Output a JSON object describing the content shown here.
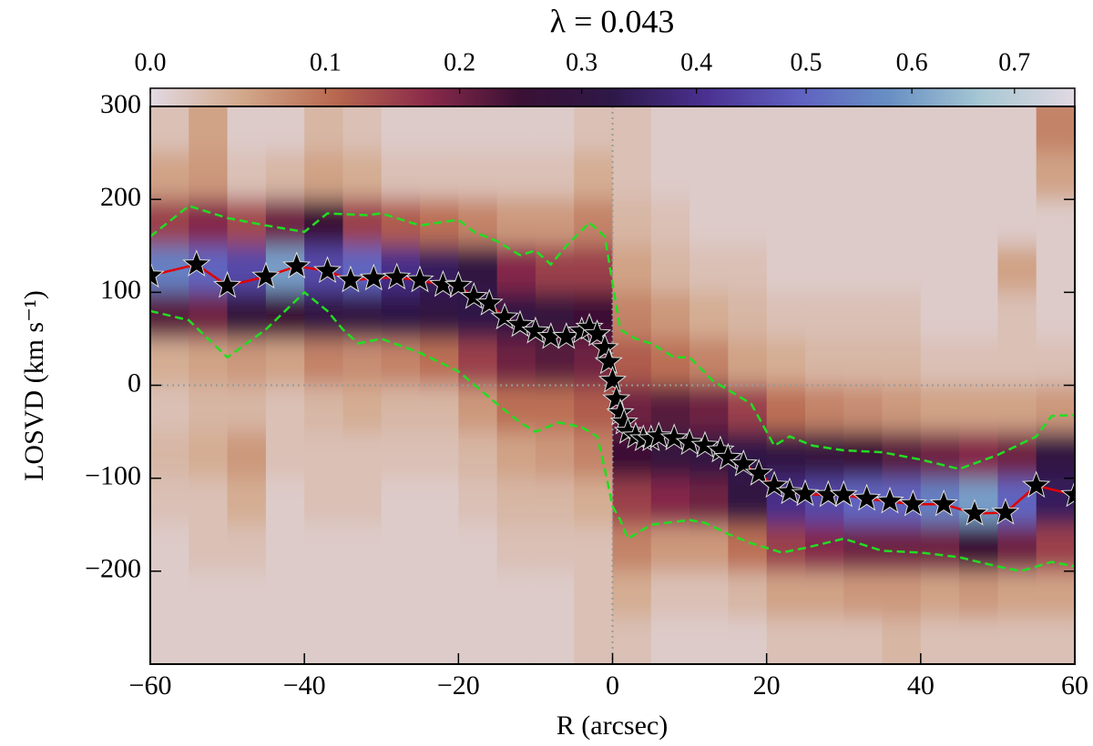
{
  "chart_data": {
    "type": "heatmap",
    "title": "λ = 0.043",
    "xlabel": "R (arcsec)",
    "ylabel": "LOSVD (km s⁻¹)",
    "xlim": [
      -60,
      60
    ],
    "ylim": [
      -300,
      300
    ],
    "xticks": [
      {
        "value": -60,
        "label": "−60"
      },
      {
        "value": -40,
        "label": "−40"
      },
      {
        "value": -20,
        "label": "−20"
      },
      0,
      20,
      40,
      60
    ],
    "yticks": [
      300,
      200,
      100,
      0,
      {
        "value": -100,
        "label": "−100"
      },
      {
        "value": -200,
        "label": "−200"
      }
    ],
    "vlines": [
      0
    ],
    "hlines": [
      0
    ],
    "x_edges": [
      -60,
      -55,
      -50,
      -45,
      -40,
      -35,
      -30,
      -25,
      -20,
      -15,
      -10,
      -5,
      0,
      5,
      10,
      15,
      20,
      25,
      30,
      35,
      40,
      45,
      50,
      55,
      60
    ],
    "y_edges": [
      300,
      250,
      200,
      150,
      100,
      50,
      0,
      -50,
      -100,
      -150,
      -200,
      -250,
      -300
    ],
    "z": [
      [
        0.02,
        0.05,
        0.15,
        0.55,
        0.22,
        0.04,
        0.02,
        0.03,
        0.02,
        0.01,
        0.01,
        0.01
      ],
      [
        0.05,
        0.06,
        0.18,
        0.5,
        0.2,
        0.05,
        0.03,
        0.04,
        0.02,
        0.02,
        0.01,
        0.01
      ],
      [
        0.01,
        0.02,
        0.14,
        0.45,
        0.28,
        0.06,
        0.03,
        0.06,
        0.04,
        0.02,
        0.01,
        0.01
      ],
      [
        0.01,
        0.03,
        0.2,
        0.6,
        0.25,
        0.05,
        0.02,
        0.02,
        0.01,
        0.01,
        0.01,
        0.01
      ],
      [
        0.03,
        0.05,
        0.25,
        0.45,
        0.3,
        0.08,
        0.03,
        0.02,
        0.02,
        0.01,
        0.01,
        0.01
      ],
      [
        0.02,
        0.04,
        0.15,
        0.5,
        0.3,
        0.07,
        0.04,
        0.02,
        0.02,
        0.01,
        0.01,
        0.01
      ],
      [
        0.01,
        0.02,
        0.12,
        0.4,
        0.32,
        0.08,
        0.03,
        0.02,
        0.01,
        0.01,
        0.01,
        0.01
      ],
      [
        0.01,
        0.02,
        0.1,
        0.35,
        0.3,
        0.1,
        0.03,
        0.02,
        0.01,
        0.01,
        0.01,
        0.01
      ],
      [
        0.01,
        0.02,
        0.08,
        0.3,
        0.32,
        0.15,
        0.06,
        0.03,
        0.02,
        0.01,
        0.01,
        0.01
      ],
      [
        0.01,
        0.02,
        0.06,
        0.18,
        0.3,
        0.2,
        0.1,
        0.05,
        0.03,
        0.02,
        0.01,
        0.01
      ],
      [
        0.01,
        0.02,
        0.06,
        0.15,
        0.28,
        0.22,
        0.1,
        0.06,
        0.03,
        0.02,
        0.01,
        0.01
      ],
      [
        0.02,
        0.04,
        0.08,
        0.15,
        0.25,
        0.2,
        0.12,
        0.08,
        0.04,
        0.02,
        0.02,
        0.02
      ],
      [
        0.02,
        0.02,
        0.03,
        0.05,
        0.08,
        0.12,
        0.2,
        0.25,
        0.15,
        0.08,
        0.04,
        0.02
      ],
      [
        0.01,
        0.01,
        0.02,
        0.03,
        0.06,
        0.1,
        0.22,
        0.28,
        0.18,
        0.06,
        0.02,
        0.01
      ],
      [
        0.01,
        0.01,
        0.01,
        0.02,
        0.04,
        0.08,
        0.2,
        0.3,
        0.2,
        0.06,
        0.02,
        0.01
      ],
      [
        0.01,
        0.01,
        0.01,
        0.02,
        0.03,
        0.05,
        0.15,
        0.32,
        0.3,
        0.1,
        0.03,
        0.01
      ],
      [
        0.01,
        0.01,
        0.01,
        0.01,
        0.02,
        0.04,
        0.1,
        0.3,
        0.4,
        0.15,
        0.05,
        0.02
      ],
      [
        0.01,
        0.01,
        0.01,
        0.01,
        0.02,
        0.03,
        0.08,
        0.28,
        0.45,
        0.18,
        0.05,
        0.02
      ],
      [
        0.01,
        0.01,
        0.01,
        0.01,
        0.02,
        0.03,
        0.07,
        0.25,
        0.5,
        0.2,
        0.06,
        0.02
      ],
      [
        0.01,
        0.01,
        0.01,
        0.01,
        0.02,
        0.03,
        0.06,
        0.22,
        0.5,
        0.2,
        0.06,
        0.03
      ],
      [
        0.01,
        0.01,
        0.01,
        0.01,
        0.01,
        0.02,
        0.05,
        0.2,
        0.55,
        0.2,
        0.05,
        0.02
      ],
      [
        0.01,
        0.01,
        0.01,
        0.01,
        0.01,
        0.02,
        0.05,
        0.18,
        0.6,
        0.25,
        0.06,
        0.02
      ],
      [
        0.01,
        0.01,
        0.01,
        0.05,
        0.02,
        0.02,
        0.05,
        0.2,
        0.5,
        0.2,
        0.05,
        0.02
      ],
      [
        0.08,
        0.05,
        0.01,
        0.01,
        0.01,
        0.02,
        0.06,
        0.3,
        0.35,
        0.15,
        0.05,
        0.02
      ]
    ],
    "colorbar": {
      "lim": [
        0,
        0.76
      ],
      "gamma": 0.82,
      "ticks": [
        {
          "value": 0,
          "label": "0.0"
        },
        0.1,
        0.2,
        0.3,
        0.4,
        0.5,
        0.6,
        0.7
      ],
      "colors": [
        "#e2d9e2",
        "#d2a88a",
        "#b8684f",
        "#8a2a4a",
        "#3a1035",
        "#2e1848",
        "#4a3090",
        "#6060c0",
        "#6890c4",
        "#a8c8d4",
        "#e2d9e2"
      ]
    },
    "lines": [
      {
        "color": "#e00000",
        "style": "solid",
        "marker": "star",
        "x": [
          -60,
          -54,
          -50,
          -45,
          -41,
          -37,
          -34,
          -31,
          -28,
          -25,
          -22,
          -20,
          -18,
          -16,
          -14,
          -12,
          -10,
          -8,
          -6,
          -4,
          -3,
          -2,
          -1,
          -0.5,
          0,
          0.5,
          1,
          1.5,
          2,
          3,
          4,
          5,
          6,
          8,
          10,
          12,
          14,
          15,
          17,
          19,
          21,
          23,
          25,
          28,
          30,
          33,
          36,
          39,
          43,
          47,
          51,
          55,
          60
        ],
        "y": [
          118,
          130,
          107,
          117,
          128,
          123,
          113,
          115,
          116,
          113,
          108,
          107,
          95,
          88,
          73,
          65,
          58,
          52,
          52,
          58,
          62,
          55,
          40,
          25,
          5,
          -15,
          -30,
          -40,
          -50,
          -55,
          -58,
          -58,
          -55,
          -57,
          -62,
          -65,
          -70,
          -78,
          -85,
          -95,
          -108,
          -115,
          -117,
          -118,
          -118,
          -122,
          -125,
          -128,
          -128,
          -138,
          -137,
          -108,
          -118
        ]
      },
      {
        "color": "#22dd22",
        "style": "dashed",
        "x": [
          -60,
          -55,
          -50,
          -45,
          -40,
          -37,
          -32,
          -30,
          -25,
          -20,
          -18,
          -15,
          -12,
          -10,
          -8,
          -6,
          -3,
          -1,
          0,
          1,
          3,
          5,
          8,
          10,
          13,
          15,
          18,
          20,
          21,
          23,
          26,
          30,
          35,
          40,
          45,
          50,
          55,
          57,
          60
        ],
        "y": [
          160,
          193,
          180,
          172,
          165,
          185,
          183,
          185,
          172,
          178,
          165,
          155,
          140,
          145,
          130,
          150,
          175,
          160,
          110,
          60,
          50,
          45,
          30,
          30,
          5,
          -5,
          -20,
          -50,
          -65,
          -55,
          -65,
          -70,
          -72,
          -80,
          -90,
          -75,
          -55,
          -33,
          -32
        ]
      },
      {
        "color": "#22dd22",
        "style": "dashed",
        "x": [
          -60,
          -55,
          -50,
          -45,
          -40,
          -37,
          -35,
          -33,
          -30,
          -25,
          -20,
          -15,
          -12,
          -10,
          -7,
          -4,
          -2,
          -1,
          0,
          1,
          2,
          5,
          10,
          12,
          15,
          18,
          20,
          22,
          25,
          30,
          35,
          40,
          45,
          50,
          53,
          57,
          60
        ],
        "y": [
          80,
          70,
          30,
          60,
          100,
          80,
          60,
          45,
          50,
          35,
          15,
          -20,
          -40,
          -50,
          -40,
          -45,
          -55,
          -90,
          -130,
          -145,
          -165,
          -150,
          -145,
          -148,
          -160,
          -170,
          -175,
          -180,
          -175,
          -165,
          -178,
          -180,
          -185,
          -195,
          -200,
          -190,
          -195
        ]
      }
    ]
  }
}
